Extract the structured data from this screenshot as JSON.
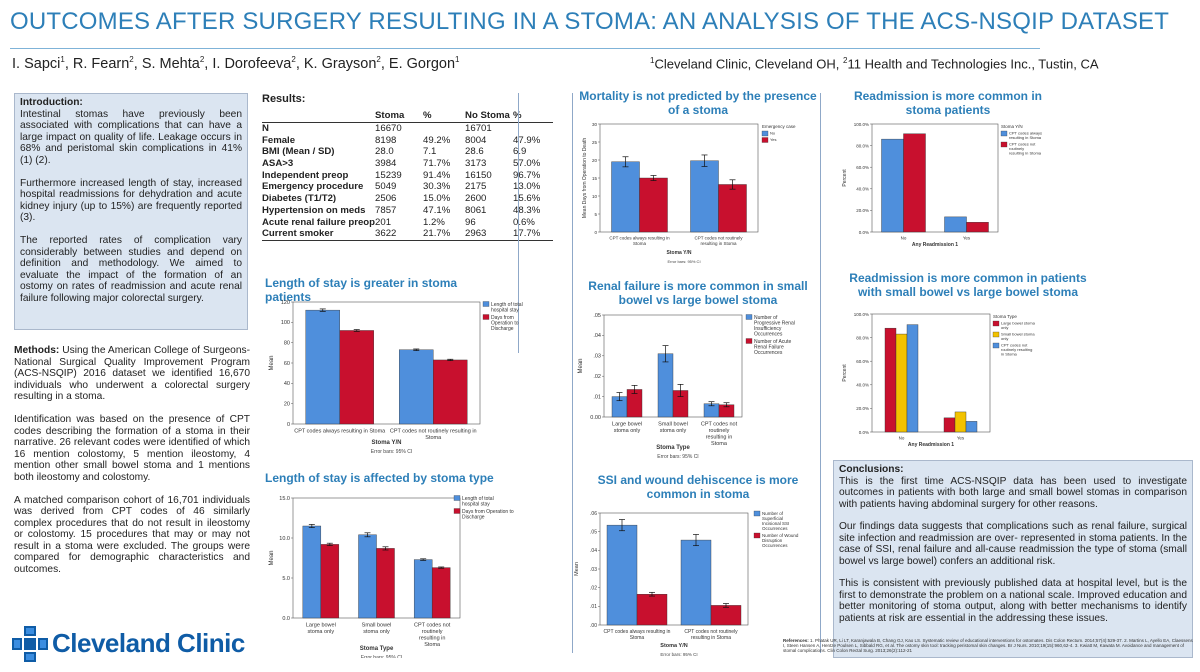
{
  "title": "OUTCOMES AFTER SURGERY RESULTING IN A STOMA:  AN ANALYSIS OF THE ACS-NSQIP DATASET",
  "authors": [
    {
      "name": "I. Sapci",
      "sup": "1"
    },
    {
      "name": "R. Fearn",
      "sup": "2"
    },
    {
      "name": "S. Mehta",
      "sup": "2"
    },
    {
      "name": "I. Dorofeeva",
      "sup": "2"
    },
    {
      "name": "K. Grayson",
      "sup": "2"
    },
    {
      "name": "E. Gorgon",
      "sup": "1"
    }
  ],
  "affiliation": {
    "sup1": "1",
    "text1": "Cleveland Clinic, Cleveland OH, ",
    "sup2": "2",
    "text2": "11 Health and Technologies Inc., Tustin, CA"
  },
  "introduction": {
    "heading": "Introduction:",
    "p1": "Intestinal stomas have previously been associated with complications that can have a large impact on quality of life. Leakage occurs in 68% and peristomal skin complications in 41% (1) (2).",
    "p2": "Furthermore increased length of stay, increased hospital readmissions for dehydration and acute kidney injury (up to 15%) are frequently reported (3).",
    "p3": "The reported rates of complication vary considerably between studies and depend on definition and methodology. We aimed to evaluate the impact of the formation of an ostomy on rates of readmission and acute renal failure following major colorectal surgery."
  },
  "methods": {
    "heading": "Methods:",
    "p1": "Using the American College of Surgeons- National Surgical Quality Improvement Program (ACS-NSQIP) 2016 dataset we identified 16,670 individuals who underwent a colorectal surgery resulting in a stoma.",
    "p2": "Identification was based on the presence of CPT codes describing the formation of a stoma in their narrative. 26 relevant codes were identified of which 16 mention colostomy, 5 mention ileostomy, 4 mention other small bowel stoma and 1 mentions both ileostomy and colostomy.",
    "p3": "A matched comparison cohort of 16,701 individuals was derived from CPT codes of 46 similarly complex procedures that do not result in ileostomy or colostomy. 15 procedures that may or may not result in a stoma were excluded. The groups were compared for demographic characteristics and outcomes."
  },
  "results": {
    "heading": "Results:",
    "columns": [
      "",
      "Stoma",
      "%",
      "No Stoma",
      "%"
    ],
    "rows": [
      [
        "N",
        "16670",
        "",
        "16701",
        ""
      ],
      [
        "Female",
        "8198",
        "49.2%",
        "8004",
        "47.9%"
      ],
      [
        "BMI (Mean / SD)",
        "28.0",
        "7.1",
        "28.6",
        "6.9"
      ],
      [
        "ASA>3",
        "3984",
        "71.7%",
        "3173",
        "57.0%"
      ],
      [
        "Independent preop",
        "15239",
        "91.4%",
        "16150",
        "96.7%"
      ],
      [
        "Emergency procedure",
        "5049",
        "30.3%",
        "2175",
        "13.0%"
      ],
      [
        "Diabetes (T1/T2)",
        "2506",
        "15.0%",
        "2600",
        "15.6%"
      ],
      [
        "Hypertension on meds",
        "7857",
        "47.1%",
        "8061",
        "48.3%"
      ],
      [
        "Acute renal failure preop",
        "201",
        "1.2%",
        "96",
        "0.6%"
      ],
      [
        "Current smoker",
        "3622",
        "21.7%",
        "2963",
        "17.7%"
      ]
    ]
  },
  "conclusions": {
    "heading": "Conclusions:",
    "p1": "This is the first time ACS-NSQIP data has been used to investigate outcomes in patients with both large and small bowel stomas in comparison with patients having abdominal surgery for other reasons.",
    "p2": "Our findings data suggests that complications such as renal failure, surgical site infection and readmission are over- represented in stoma patients. In the case of SSI, renal failure and all-cause readmission the type of stoma (small bowel vs large bowel) confers an additional risk.",
    "p3": "This is consistent with previously published data at hospital level, but is the first to demonstrate the problem on a national scale. Improved education and better monitoring of stoma output, along with better mechanisms to identify patients at risk are essential in the addressing these issues."
  },
  "references": {
    "heading": "References:",
    "text": "1. Phatak UR, Li LT, Karanjawala B, Chang GJ, Kao LS. Systematic review of educational interventions for ostomates. Dis Colon Rectum. 2014;57(4):529-37. 2. Martins L, Ayello EA, Claessens I, Steen Hansen A, Hentze Poulsen L, Sibbald RG, et al. The ostomy skin tool: tracking peristomal skin changes. Br J Nurs. 2010;19(15):960,62-4. 3. Kwiatt M, Kawata M. Avoidance and management of stomal complications. Clin Colon Rectal Surg. 2013;26(2):112-21"
  },
  "logo": {
    "text": "Cleveland Clinic",
    "icon": "cleveland-clinic-cross-icon"
  },
  "colors": {
    "blue": "#4f8fdc",
    "red": "#c8102e",
    "yellow": "#f2c200",
    "title": "#2d7fb8",
    "box": "#dbe5f1"
  },
  "chart_data": [
    {
      "id": "mortality",
      "type": "bar",
      "title": "Mortality is not predicted by the presence of a stoma",
      "ylabel": "Mean Days from Operation to Death",
      "xlabel": "Stoma Y/N",
      "ylim": [
        0,
        30
      ],
      "yticks": [
        "0",
        "5",
        "10",
        "15",
        "20",
        "25",
        "30"
      ],
      "categories": [
        "CPT codes always resulting in Stoma",
        "CPT codes not routinely resulting in Stoma"
      ],
      "legend_title": "Emergency case",
      "series": [
        {
          "name": "No",
          "color": "#4f8fdc",
          "values": [
            19.5,
            19.8
          ],
          "err": [
            1.4,
            1.6
          ]
        },
        {
          "name": "Yes",
          "color": "#c8102e",
          "values": [
            15.0,
            13.2
          ],
          "err": [
            0.7,
            1.3
          ]
        }
      ],
      "footnote": "Error bars: 95% CI",
      "legend_position": "right"
    },
    {
      "id": "readmission",
      "type": "bar",
      "title": "Readmission is more common in stoma patients",
      "ylabel": "Percent",
      "xlabel": "Any Readmission 1",
      "ylim": [
        0,
        100
      ],
      "yticks": [
        "0.0%",
        "20.0%",
        "40.0%",
        "60.0%",
        "80.0%",
        "100.0%"
      ],
      "categories": [
        "No",
        "Yes"
      ],
      "series": [
        {
          "name": "CPT codes always resulting in Stoma",
          "color": "#4f8fdc",
          "values": [
            86,
            14
          ]
        },
        {
          "name": "CPT codes not routinely resulting in Stoma",
          "color": "#c8102e",
          "values": [
            91,
            9
          ]
        }
      ],
      "legend_title": "Stoma Y/N",
      "legend_position": "right"
    },
    {
      "id": "los-stoma",
      "type": "bar",
      "title": "Length of stay is greater in stoma patients",
      "ylabel": "Mean",
      "xlabel": "Stoma Y/N",
      "ylim": [
        0,
        120
      ],
      "yticks": [
        "0",
        "20",
        "40",
        "60",
        "80",
        "100",
        "120"
      ],
      "categories": [
        "CPT codes always resulting in Stoma",
        "CPT codes not routinely resulting in Stoma"
      ],
      "series": [
        {
          "name": "Length of total hospital stay",
          "color": "#4f8fdc",
          "values": [
            112,
            73
          ],
          "err": [
            1.2,
            0.8
          ]
        },
        {
          "name": "Days from Operation to Discharge",
          "color": "#c8102e",
          "values": [
            92,
            63
          ],
          "err": [
            0.9,
            0.7
          ]
        }
      ],
      "footnote": "Error bars: 95% CI",
      "legend_position": "top-right"
    },
    {
      "id": "renal",
      "type": "bar",
      "title": "Renal failure is more common in small bowel vs large bowel stoma",
      "ylabel": "Mean",
      "xlabel": "Stoma Type",
      "ylim": [
        0.0,
        0.05
      ],
      "yticks": [
        "0.00",
        ".01",
        ".02",
        ".03",
        ".04",
        ".05"
      ],
      "categories": [
        "Large bowel stoma only",
        "Small bowel stoma only",
        "CPT codes not routinely resulting in Stoma"
      ],
      "series": [
        {
          "name": "Number of Progressive Renal Insufficiency Occurrences",
          "color": "#4f8fdc",
          "values": [
            0.01,
            0.031,
            0.0065
          ],
          "err": [
            0.002,
            0.004,
            0.001
          ]
        },
        {
          "name": "Number of Acute Renal Failure Occurrences",
          "color": "#c8102e",
          "values": [
            0.0135,
            0.013,
            0.006
          ],
          "err": [
            0.002,
            0.003,
            0.001
          ]
        }
      ],
      "footnote": "Error bars: 95% CI",
      "legend_position": "top-right"
    },
    {
      "id": "readmission-type",
      "type": "bar",
      "title": "Readmission is more common in patients with small bowel vs large bowel stoma",
      "ylabel": "Percent",
      "xlabel": "Any Readmission 1",
      "ylim": [
        0,
        100
      ],
      "yticks": [
        "0.0%",
        "20.0%",
        "40.0%",
        "60.0%",
        "80.0%",
        "100.0%"
      ],
      "categories": [
        "No",
        "Yes"
      ],
      "legend_title": "Stoma Type",
      "series": [
        {
          "name": "Large bowel stoma only",
          "color": "#c8102e",
          "values": [
            88,
            12
          ]
        },
        {
          "name": "Small bowel stoma only",
          "color": "#f2c200",
          "values": [
            83,
            17
          ]
        },
        {
          "name": "CPT codes not routinely resulting in Stoma",
          "color": "#4f8fdc",
          "values": [
            91,
            9
          ]
        }
      ],
      "legend_position": "top-right"
    },
    {
      "id": "los-type",
      "type": "bar",
      "title": "Length of stay is affected by stoma type",
      "ylabel": "Mean",
      "xlabel": "Stoma Type",
      "ylim": [
        0,
        15
      ],
      "yticks": [
        "0.0",
        "5.0",
        "10.0",
        "15.0"
      ],
      "categories": [
        "Large bowel stoma only",
        "Small bowel stoma only",
        "CPT codes not routinely resulting in Stoma"
      ],
      "series": [
        {
          "name": "Length of total hospital stay",
          "color": "#4f8fdc",
          "values": [
            11.5,
            10.4,
            7.3
          ],
          "err": [
            0.2,
            0.25,
            0.1
          ]
        },
        {
          "name": "Days from Operation to Discharge",
          "color": "#c8102e",
          "values": [
            9.2,
            8.7,
            6.3
          ],
          "err": [
            0.15,
            0.2,
            0.08
          ]
        }
      ],
      "footnote": "Error bars: 95% CI",
      "legend_position": "top-right"
    },
    {
      "id": "ssi",
      "type": "bar",
      "title": "SSI and wound dehiscence is more common in stoma",
      "ylabel": "Mean",
      "xlabel": "Stoma Y/N",
      "ylim": [
        0,
        0.06
      ],
      "yticks": [
        ".00",
        ".01",
        ".02",
        ".03",
        ".04",
        ".05",
        ".06"
      ],
      "categories": [
        "CPT codes always resulting in Stoma",
        "CPT codes not routinely resulting in Stoma"
      ],
      "series": [
        {
          "name": "Number of Superficial Incisional SSI Occurrences",
          "color": "#4f8fdc",
          "values": [
            0.0535,
            0.0455
          ],
          "err": [
            0.003,
            0.003
          ]
        },
        {
          "name": "Number of Wound Disruption Occurrences",
          "color": "#c8102e",
          "values": [
            0.0165,
            0.0105
          ],
          "err": [
            0.001,
            0.001
          ]
        }
      ],
      "footnote": "Error bars: 95% CI",
      "legend_position": "top-right"
    }
  ]
}
